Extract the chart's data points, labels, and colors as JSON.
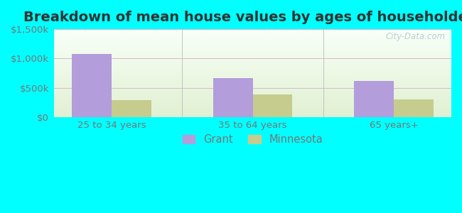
{
  "title": "Breakdown of mean house values by ages of householders",
  "categories": [
    "25 to 34 years",
    "35 to 64 years",
    "65 years+"
  ],
  "grant_values": [
    1075000,
    670000,
    620000
  ],
  "minnesota_values": [
    295000,
    390000,
    310000
  ],
  "grant_color": "#b39ddb",
  "minnesota_color": "#c5cc8e",
  "ylim": [
    0,
    1500000
  ],
  "yticks": [
    0,
    500000,
    1000000,
    1500000
  ],
  "ytick_labels": [
    "$0",
    "$500k",
    "$1,000k",
    "$1,500k"
  ],
  "legend_labels": [
    "Grant",
    "Minnesota"
  ],
  "background_outer": "#00ffff",
  "watermark": "City-Data.com",
  "bar_width": 0.28,
  "title_fontsize": 14,
  "tick_fontsize": 9.5,
  "legend_fontsize": 10.5
}
